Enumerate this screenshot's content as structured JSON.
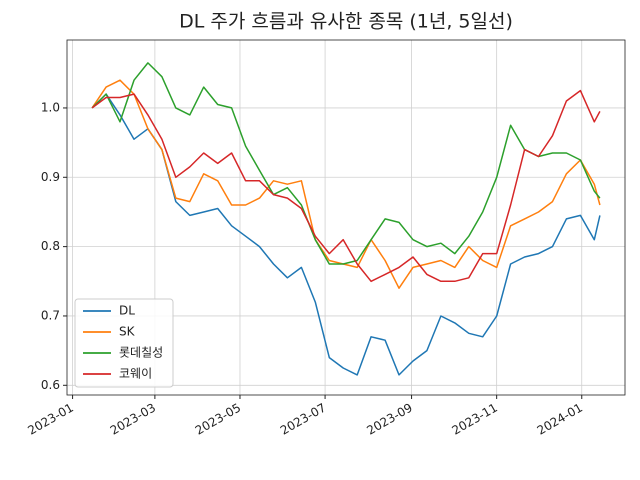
{
  "chart_data": {
    "type": "line",
    "title": "DL 주가 흐름과 유사한 종목 (1년, 5일선)",
    "x": [
      "2023-01-15",
      "2023-01-25",
      "2023-02-04",
      "2023-02-14",
      "2023-02-24",
      "2023-03-06",
      "2023-03-16",
      "2023-03-26",
      "2023-04-05",
      "2023-04-15",
      "2023-04-25",
      "2023-05-05",
      "2023-05-15",
      "2023-05-25",
      "2023-06-04",
      "2023-06-14",
      "2023-06-24",
      "2023-07-04",
      "2023-07-14",
      "2023-07-24",
      "2023-08-03",
      "2023-08-13",
      "2023-08-23",
      "2023-09-02",
      "2023-09-12",
      "2023-09-22",
      "2023-10-02",
      "2023-10-12",
      "2023-10-22",
      "2023-11-01",
      "2023-11-11",
      "2023-11-21",
      "2023-12-01",
      "2023-12-11",
      "2023-12-21",
      "2023-12-31",
      "2024-01-10",
      "2024-01-14"
    ],
    "series": [
      {
        "name": "DL",
        "color": "#1f77b4",
        "values": [
          1.0,
          1.02,
          0.99,
          0.955,
          0.97,
          0.94,
          0.865,
          0.845,
          0.85,
          0.855,
          0.83,
          0.815,
          0.8,
          0.775,
          0.755,
          0.77,
          0.72,
          0.64,
          0.625,
          0.615,
          0.67,
          0.665,
          0.615,
          0.635,
          0.65,
          0.7,
          0.69,
          0.675,
          0.67,
          0.7,
          0.775,
          0.785,
          0.79,
          0.8,
          0.84,
          0.845,
          0.81,
          0.845
        ]
      },
      {
        "name": "SK",
        "color": "#ff7f0e",
        "values": [
          1.0,
          1.03,
          1.04,
          1.02,
          0.97,
          0.94,
          0.87,
          0.865,
          0.905,
          0.895,
          0.86,
          0.86,
          0.87,
          0.895,
          0.89,
          0.895,
          0.81,
          0.78,
          0.775,
          0.77,
          0.81,
          0.78,
          0.74,
          0.77,
          0.775,
          0.78,
          0.77,
          0.8,
          0.78,
          0.77,
          0.83,
          0.84,
          0.85,
          0.865,
          0.905,
          0.925,
          0.89,
          0.86
        ]
      },
      {
        "name": "롯데칠성",
        "color": "#2ca02c",
        "values": [
          1.0,
          1.02,
          0.98,
          1.04,
          1.065,
          1.045,
          1.0,
          0.99,
          1.03,
          1.005,
          1.0,
          0.945,
          0.91,
          0.875,
          0.885,
          0.86,
          0.81,
          0.775,
          0.775,
          0.78,
          0.81,
          0.84,
          0.835,
          0.81,
          0.8,
          0.805,
          0.79,
          0.815,
          0.85,
          0.9,
          0.975,
          0.94,
          0.93,
          0.935,
          0.935,
          0.925,
          0.88,
          0.87
        ]
      },
      {
        "name": "코웨이",
        "color": "#d62728",
        "values": [
          1.0,
          1.015,
          1.015,
          1.02,
          0.99,
          0.955,
          0.9,
          0.915,
          0.935,
          0.92,
          0.935,
          0.895,
          0.895,
          0.875,
          0.87,
          0.855,
          0.815,
          0.79,
          0.81,
          0.775,
          0.75,
          0.76,
          0.77,
          0.785,
          0.76,
          0.75,
          0.75,
          0.755,
          0.79,
          0.79,
          0.86,
          0.94,
          0.93,
          0.96,
          1.01,
          1.025,
          0.98,
          0.995
        ]
      }
    ],
    "xlim": [
      "2022-12-28",
      "2024-02-01"
    ],
    "xticks": [
      {
        "value": "2023-01-01",
        "label": "2023-01"
      },
      {
        "value": "2023-03-01",
        "label": "2023-03"
      },
      {
        "value": "2023-05-01",
        "label": "2023-05"
      },
      {
        "value": "2023-07-01",
        "label": "2023-07"
      },
      {
        "value": "2023-09-01",
        "label": "2023-09"
      },
      {
        "value": "2023-11-01",
        "label": "2023-11"
      },
      {
        "value": "2024-01-01",
        "label": "2024-01"
      }
    ],
    "ylim": [
      0.586,
      1.098
    ],
    "yticks": [
      0.6,
      0.7,
      0.8,
      0.9,
      {
        "value": 1,
        "label": "1.0"
      }
    ],
    "grid": true,
    "legend": "lower left"
  }
}
